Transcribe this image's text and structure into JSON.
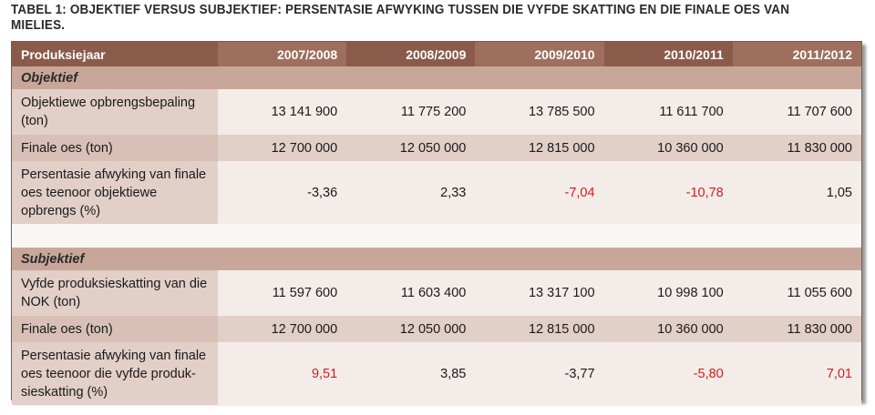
{
  "title": "TABEL 1: OBJEKTIEF VERSUS SUBJEKTIEF: PERSENTASIE AFWYKING TUSSEN DIE VYFDE SKATTING EN DIE FINALE OES VAN MIELIES.",
  "header": {
    "label": "Produksiejaar",
    "years": [
      "2007/2008",
      "2008/2009",
      "2009/2010",
      "2010/2011",
      "2011/2012"
    ]
  },
  "sections": [
    {
      "name": "Objektief",
      "rows": [
        {
          "label": "Objektiewe opbrengsbepaling (ton)",
          "values": [
            "13 141 900",
            "11 775 200",
            "13 785 500",
            "11 611 700",
            "11 707 600"
          ],
          "negative": [
            false,
            false,
            false,
            false,
            false
          ]
        },
        {
          "label": "Finale oes (ton)",
          "values": [
            "12 700 000",
            "12 050 000",
            "12 815 000",
            "10 360 000",
            "11 830 000"
          ],
          "negative": [
            false,
            false,
            false,
            false,
            false
          ]
        },
        {
          "label": "Persentasie afwyking van finale oes teenoor objektiewe opbrengs (%)",
          "values": [
            "-3,36",
            "2,33",
            "-7,04",
            "-10,78",
            "1,05"
          ],
          "negative": [
            false,
            false,
            true,
            true,
            false
          ]
        }
      ]
    },
    {
      "name": "Subjektief",
      "rows": [
        {
          "label": "Vyfde produksieskatting van die NOK (ton)",
          "values": [
            "11 597 600",
            "11 603 400",
            "13 317 100",
            "10 998 100",
            "11 055 600"
          ],
          "negative": [
            false,
            false,
            false,
            false,
            false
          ]
        },
        {
          "label": "Finale oes (ton)",
          "values": [
            "12 700 000",
            "12 050 000",
            "12 815 000",
            "10 360 000",
            "11 830 000"
          ],
          "negative": [
            false,
            false,
            false,
            false,
            false
          ]
        },
        {
          "label": "Persentasie afwyking van finale oes teenoor die vyfde produk-sieskatting (%)",
          "values": [
            "9,51",
            "3,85",
            "-3,77",
            "-5,80",
            "7,01"
          ],
          "negative": [
            true,
            false,
            false,
            true,
            true
          ]
        }
      ]
    }
  ],
  "colors": {
    "header_dark": "#8a5b4a",
    "header_mid": "#9e6f5d",
    "section_bg": "#c9a69a",
    "highlight_text": "#d21e1e"
  }
}
